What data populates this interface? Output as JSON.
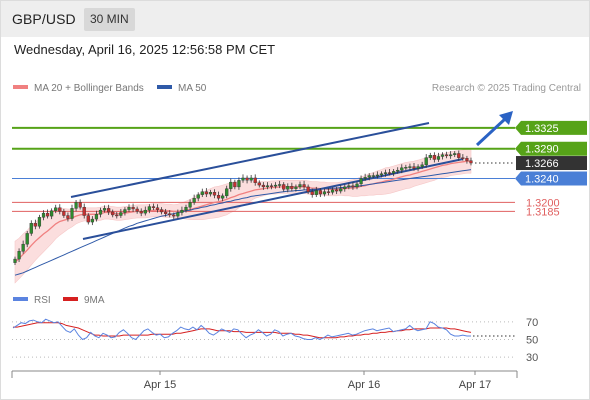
{
  "header": {
    "symbol": "GBP/USD",
    "timeframe": "30 MIN",
    "timestamp": "Wednesday, April 16, 2025 12:56:58 PM CET"
  },
  "credit": "Research © 2025 Trading Central",
  "colors": {
    "ma20": "#f08080",
    "ma50": "#2f5aa8",
    "bollinger_fill": "#fbdede",
    "resistance": "#56a318",
    "support": "#4a7fd6",
    "support_red": "#e06060",
    "trendline": "#2a4f9a",
    "candle_up": "#2e8b2e",
    "candle_down": "#c43030",
    "current": "#333333",
    "rsi": "#5b84e0",
    "rsi_ma": "#d62020"
  },
  "chart_data": [
    {
      "type": "candlestick",
      "legend": [
        {
          "label": "MA 20 + Bollinger Bands",
          "color": "#f08080"
        },
        {
          "label": "MA 50",
          "color": "#2f5aa8"
        }
      ],
      "ylim": [
        1.3085,
        1.337
      ],
      "x_ticks": [
        "Apr 15",
        "Apr 16",
        "Apr 17"
      ],
      "levels": [
        {
          "value": 1.3325,
          "label": "1.3325",
          "kind": "resistance"
        },
        {
          "value": 1.329,
          "label": "1.3290",
          "kind": "resistance"
        },
        {
          "value": 1.3266,
          "label": "1.3266",
          "kind": "current"
        },
        {
          "value": 1.324,
          "label": "1.3240",
          "kind": "support"
        },
        {
          "value": 1.32,
          "label": "1.3200",
          "kind": "support_red"
        },
        {
          "value": 1.3185,
          "label": "1.3185",
          "kind": "support_red"
        }
      ],
      "close": [
        1.3105,
        1.3118,
        1.313,
        1.3148,
        1.3165,
        1.316,
        1.3175,
        1.3182,
        1.3177,
        1.3186,
        1.3191,
        1.3185,
        1.3178,
        1.3173,
        1.319,
        1.32,
        1.3192,
        1.3178,
        1.3167,
        1.3172,
        1.318,
        1.3187,
        1.319,
        1.3184,
        1.3179,
        1.3178,
        1.3183,
        1.3188,
        1.3192,
        1.3189,
        1.3185,
        1.3182,
        1.3187,
        1.3193,
        1.3191,
        1.3188,
        1.3184,
        1.3181,
        1.3179,
        1.3177,
        1.3183,
        1.3187,
        1.3192,
        1.32,
        1.3207,
        1.3213,
        1.3218,
        1.3214,
        1.3217,
        1.3212,
        1.3207,
        1.3211,
        1.3223,
        1.3234,
        1.3226,
        1.3237,
        1.3241,
        1.3237,
        1.3241,
        1.3233,
        1.3229,
        1.3226,
        1.3228,
        1.3227,
        1.3229,
        1.323,
        1.3222,
        1.3227,
        1.3223,
        1.3226,
        1.323,
        1.3226,
        1.3218,
        1.3213,
        1.322,
        1.3214,
        1.3218,
        1.3217,
        1.3221,
        1.3219,
        1.3223,
        1.3226,
        1.3228,
        1.3226,
        1.3231,
        1.324,
        1.3242,
        1.3245,
        1.3245,
        1.3246,
        1.3248,
        1.325,
        1.3249,
        1.3252,
        1.3254,
        1.3258,
        1.3259,
        1.326,
        1.3257,
        1.326,
        1.3263,
        1.3275,
        1.3279,
        1.3272,
        1.3277,
        1.328,
        1.3278,
        1.328,
        1.3282,
        1.3275,
        1.3274,
        1.327,
        1.3266
      ],
      "ma20": [
        1.31,
        1.3106,
        1.3113,
        1.312,
        1.3128,
        1.3135,
        1.3141,
        1.3147,
        1.3152,
        1.3158,
        1.3164,
        1.3168,
        1.317,
        1.3172,
        1.3174,
        1.3177,
        1.3179,
        1.318,
        1.318,
        1.318,
        1.318,
        1.3181,
        1.3183,
        1.3183,
        1.3182,
        1.3181,
        1.3181,
        1.3182,
        1.3183,
        1.3184,
        1.3185,
        1.3185,
        1.3185,
        1.3186,
        1.3187,
        1.3187,
        1.3187,
        1.3186,
        1.3186,
        1.3185,
        1.3185,
        1.3186,
        1.3187,
        1.3188,
        1.319,
        1.3192,
        1.3194,
        1.3196,
        1.3198,
        1.32,
        1.3201,
        1.3203,
        1.3205,
        1.3208,
        1.321,
        1.3213,
        1.3215,
        1.3217,
        1.3219,
        1.3221,
        1.3222,
        1.3223,
        1.3224,
        1.3225,
        1.3225,
        1.3226,
        1.3226,
        1.3226,
        1.3226,
        1.3226,
        1.3226,
        1.3226,
        1.3225,
        1.3224,
        1.3224,
        1.3223,
        1.3223,
        1.3222,
        1.3222,
        1.3222,
        1.3223,
        1.3223,
        1.3224,
        1.3224,
        1.3225,
        1.3227,
        1.3228,
        1.323,
        1.3231,
        1.3233,
        1.3234,
        1.3236,
        1.3237,
        1.3239,
        1.3241,
        1.3243,
        1.3245,
        1.3246,
        1.3248,
        1.325,
        1.3252,
        1.3254,
        1.3256,
        1.3258,
        1.326,
        1.3262,
        1.3263,
        1.3265,
        1.3266,
        1.3267,
        1.3268,
        1.3269,
        1.3269
      ],
      "ma50": [
        1.3078,
        1.308,
        1.3082,
        1.3085,
        1.3088,
        1.3091,
        1.3094,
        1.3097,
        1.31,
        1.3103,
        1.3106,
        1.3109,
        1.3112,
        1.3115,
        1.3118,
        1.3121,
        1.3124,
        1.3127,
        1.313,
        1.3133,
        1.3136,
        1.3139,
        1.3142,
        1.3145,
        1.3148,
        1.3151,
        1.3154,
        1.3157,
        1.316,
        1.3162,
        1.3165,
        1.3167,
        1.3169,
        1.3171,
        1.3173,
        1.3175,
        1.3177,
        1.3178,
        1.318,
        1.3181,
        1.3183,
        1.3184,
        1.3186,
        1.3187,
        1.3189,
        1.319,
        1.3192,
        1.3193,
        1.3195,
        1.3196,
        1.3198,
        1.3199,
        1.3201,
        1.3202,
        1.3204,
        1.3205,
        1.3207,
        1.3208,
        1.321,
        1.3211,
        1.3212,
        1.3213,
        1.3214,
        1.3215,
        1.3216,
        1.3217,
        1.3218,
        1.3219,
        1.3219,
        1.322,
        1.322,
        1.3221,
        1.3221,
        1.3222,
        1.3222,
        1.3222,
        1.3223,
        1.3223,
        1.3224,
        1.3224,
        1.3225,
        1.3225,
        1.3226,
        1.3226,
        1.3227,
        1.3228,
        1.3229,
        1.323,
        1.3231,
        1.3232,
        1.3233,
        1.3234,
        1.3235,
        1.3236,
        1.3237,
        1.3238,
        1.3239,
        1.324,
        1.3241,
        1.3242,
        1.3243,
        1.3244,
        1.3245,
        1.3246,
        1.3247,
        1.3248,
        1.3249,
        1.325,
        1.3251,
        1.3252,
        1.3253,
        1.3254,
        1.3255
      ],
      "bb_width": [
        0.0035,
        0.0034,
        0.0034,
        0.0033,
        0.0033,
        0.0032,
        0.0031,
        0.003,
        0.0028,
        0.0027,
        0.0025,
        0.0023,
        0.002,
        0.0017,
        0.0015,
        0.0013,
        0.0012,
        0.0011,
        0.0011,
        0.0011,
        0.0011,
        0.0011,
        0.0011,
        0.0011,
        0.0011,
        0.0011,
        0.0011,
        0.0011,
        0.0011,
        0.0011,
        0.0011,
        0.0011,
        0.0011,
        0.0011,
        0.0011,
        0.0011,
        0.0011,
        0.0011,
        0.0011,
        0.0011,
        0.0012,
        0.0013,
        0.0015,
        0.0017,
        0.0019,
        0.0021,
        0.0023,
        0.0024,
        0.0025,
        0.0026,
        0.0026,
        0.0026,
        0.0026,
        0.0025,
        0.0024,
        0.0022,
        0.002,
        0.0018,
        0.0016,
        0.0014,
        0.0013,
        0.0012,
        0.0011,
        0.0011,
        0.0011,
        0.0011,
        0.0011,
        0.0011,
        0.0011,
        0.0011,
        0.0011,
        0.0011,
        0.0011,
        0.0011,
        0.0011,
        0.0011,
        0.0011,
        0.0011,
        0.0011,
        0.0011,
        0.0011,
        0.0012,
        0.0013,
        0.0014,
        0.0015,
        0.0016,
        0.0017,
        0.0018,
        0.0019,
        0.002,
        0.0021,
        0.0022,
        0.0022,
        0.0022,
        0.0022,
        0.0022,
        0.0022,
        0.0022,
        0.0021,
        0.0021,
        0.0021,
        0.0021,
        0.0021,
        0.0021,
        0.002,
        0.002,
        0.002,
        0.002,
        0.002,
        0.002,
        0.002,
        0.002,
        0.002
      ]
    },
    {
      "type": "line",
      "legend": [
        {
          "label": "RSI",
          "color": "#5b84e0"
        },
        {
          "label": "9MA",
          "color": "#d62020"
        }
      ],
      "y_ticks": [
        70,
        50,
        30
      ],
      "ylim": [
        20,
        80
      ],
      "rsi": [
        63,
        66,
        69,
        68,
        71,
        72,
        70,
        69,
        73,
        71,
        69,
        70,
        65,
        60,
        58,
        62,
        55,
        50,
        52,
        58,
        54,
        52,
        57,
        55,
        52,
        53,
        58,
        61,
        57,
        52,
        50,
        55,
        60,
        62,
        58,
        55,
        56,
        52,
        53,
        57,
        60,
        64,
        62,
        61,
        64,
        61,
        66,
        62,
        57,
        55,
        58,
        62,
        60,
        58,
        62,
        61,
        56,
        52,
        55,
        57,
        61,
        58,
        54,
        56,
        61,
        59,
        54,
        56,
        57,
        54,
        53,
        51,
        50,
        50,
        52,
        50,
        52,
        55,
        53,
        54,
        55,
        56,
        57,
        55,
        56,
        58,
        60,
        61,
        62,
        60,
        61,
        62,
        63,
        59,
        60,
        61,
        62,
        66,
        62,
        60,
        61,
        62,
        70,
        68,
        64,
        63,
        61,
        56,
        54,
        54,
        55,
        54,
        54
      ],
      "rsi_ma": [
        64,
        64,
        65,
        66,
        67,
        68,
        69,
        69,
        69,
        69,
        69,
        69,
        68,
        66,
        65,
        64,
        63,
        61,
        59,
        57,
        55,
        55,
        54,
        54,
        54,
        54,
        54,
        55,
        55,
        55,
        55,
        55,
        55,
        55,
        56,
        56,
        56,
        56,
        56,
        56,
        57,
        57,
        58,
        59,
        60,
        61,
        62,
        62,
        62,
        61,
        60,
        60,
        60,
        60,
        59,
        59,
        59,
        58,
        58,
        58,
        58,
        58,
        58,
        58,
        58,
        57,
        57,
        57,
        57,
        56,
        56,
        55,
        55,
        54,
        53,
        52,
        52,
        52,
        52,
        52,
        53,
        53,
        54,
        54,
        55,
        55,
        56,
        56,
        57,
        57,
        58,
        58,
        59,
        59,
        60,
        60,
        61,
        61,
        62,
        62,
        62,
        62,
        63,
        63,
        63,
        63,
        63,
        62,
        62,
        61,
        60,
        59,
        58
      ]
    }
  ]
}
